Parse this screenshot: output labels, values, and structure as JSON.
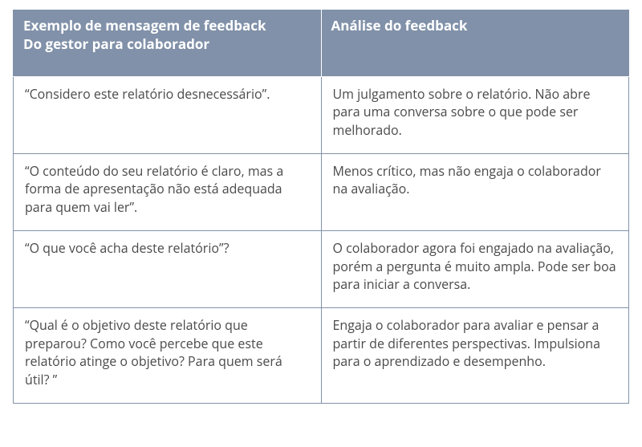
{
  "table": {
    "header_bg": "#8191a9",
    "header_fg": "#ffffff",
    "border_color": "#8191a9",
    "body_fg": "#4a4a4a",
    "header_font_size_pt": 13,
    "body_font_size_pt": 12,
    "columns": [
      {
        "key": "example",
        "title_line1": "Exemplo de mensagem de feedback",
        "title_line2": "Do gestor para colaborador",
        "width_pct": 50
      },
      {
        "key": "analysis",
        "title_line1": "Análise do feedback",
        "title_line2": "",
        "width_pct": 50
      }
    ],
    "rows": [
      {
        "example": "“Considero este relatório desnecessário”.",
        "analysis": "Um julgamento sobre o relatório. Não abre para uma conversa sobre o que pode ser melhorado."
      },
      {
        "example": "“O conteúdo do seu relatório é claro, mas a forma de apresentação não está adequada para quem vai ler”.",
        "analysis": "Menos crítico, mas não engaja o colaborador na avaliação."
      },
      {
        "example": "“O que você acha deste relatório”?",
        "analysis": "O colaborador agora foi engajado na avaliação, porém a pergunta é muito ampla. Pode ser boa para iniciar a conversa."
      },
      {
        "example": "“Qual é o objetivo deste relatório que preparou? Como você percebe que este relatório atinge o objetivo? Para quem será útil? ”",
        "analysis": "Engaja o colaborador para avaliar e pensar a partir de diferentes perspectivas. Impulsiona para o aprendizado e desempenho."
      }
    ]
  }
}
